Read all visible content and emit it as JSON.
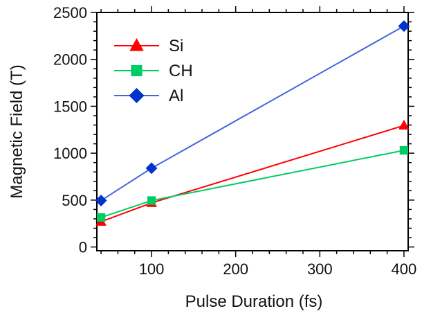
{
  "chart_data": {
    "type": "line",
    "xlabel": "Pulse Duration (fs)",
    "ylabel": "Magnetic Field (T)",
    "xlim": [
      35,
      405
    ],
    "ylim": [
      -40,
      2500
    ],
    "x_ticks": [
      100,
      200,
      300,
      400
    ],
    "y_ticks": [
      0,
      500,
      1000,
      1500,
      2000,
      2500
    ],
    "x_minor_step": 20,
    "y_minor_step": 100,
    "grid": false,
    "legend_position": "top-left",
    "series": [
      {
        "name": "Si",
        "color": "#ff0000",
        "marker": "triangle",
        "x": [
          40,
          100,
          400
        ],
        "y": [
          270,
          470,
          1295
        ]
      },
      {
        "name": "CH",
        "color": "#00cc66",
        "marker": "square",
        "x": [
          40,
          100,
          400
        ],
        "y": [
          315,
          495,
          1030
        ]
      },
      {
        "name": "Al",
        "color": "#0033cc",
        "line_color": "#4466dd",
        "marker": "diamond",
        "x": [
          40,
          100,
          400
        ],
        "y": [
          495,
          840,
          2355
        ]
      }
    ]
  }
}
